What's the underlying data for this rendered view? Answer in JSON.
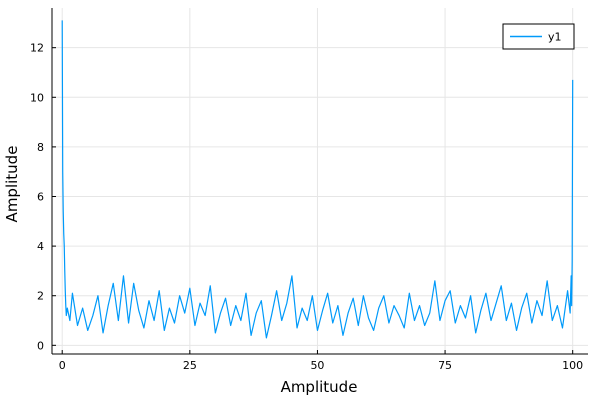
{
  "chart_data": {
    "type": "line",
    "title": "",
    "xlabel": "Amplitude",
    "ylabel": "Amplitude",
    "xlim": [
      -2,
      103
    ],
    "ylim": [
      -0.35,
      13.6
    ],
    "xticks": [
      0,
      25,
      50,
      75,
      100
    ],
    "yticks": [
      0,
      2,
      4,
      6,
      8,
      10,
      12
    ],
    "grid": true,
    "legend_position": "top-right",
    "series": [
      {
        "name": "y1",
        "color": "#009AFA",
        "x": [
          0,
          0.1,
          0.2,
          0.3,
          0.4,
          0.5,
          0.6,
          0.7,
          0.8,
          1,
          1.5,
          2,
          3,
          4,
          5,
          6,
          7,
          8,
          9,
          10,
          11,
          12,
          13,
          14,
          15,
          16,
          17,
          18,
          19,
          20,
          21,
          22,
          23,
          24,
          25,
          26,
          27,
          28,
          29,
          30,
          31,
          32,
          33,
          34,
          35,
          36,
          37,
          38,
          39,
          40,
          41,
          42,
          43,
          44,
          45,
          46,
          47,
          48,
          49,
          50,
          51,
          52,
          53,
          54,
          55,
          56,
          57,
          58,
          59,
          60,
          61,
          62,
          63,
          64,
          65,
          66,
          67,
          68,
          69,
          70,
          71,
          72,
          73,
          74,
          75,
          76,
          77,
          78,
          79,
          80,
          81,
          82,
          83,
          84,
          85,
          86,
          87,
          88,
          89,
          90,
          91,
          92,
          93,
          94,
          95,
          96,
          97,
          98,
          99,
          99.5,
          99.7,
          99.8,
          99.9,
          100
        ],
        "y": [
          13.1,
          7.0,
          5.4,
          4.5,
          4.0,
          3.0,
          2.2,
          1.6,
          1.2,
          1.5,
          1.0,
          2.1,
          0.8,
          1.5,
          0.6,
          1.2,
          2.0,
          0.5,
          1.6,
          2.5,
          1.0,
          2.8,
          0.9,
          2.5,
          1.4,
          0.7,
          1.8,
          1.0,
          2.2,
          0.6,
          1.5,
          0.9,
          2.0,
          1.3,
          2.3,
          0.8,
          1.7,
          1.2,
          2.4,
          0.5,
          1.3,
          1.9,
          0.8,
          1.6,
          1.0,
          2.1,
          0.4,
          1.3,
          1.8,
          0.3,
          1.2,
          2.2,
          1.0,
          1.7,
          2.8,
          0.7,
          1.5,
          1.0,
          2.0,
          0.6,
          1.4,
          2.1,
          0.9,
          1.6,
          0.4,
          1.3,
          1.9,
          0.8,
          2.0,
          1.1,
          0.6,
          1.5,
          2.0,
          0.9,
          1.6,
          1.2,
          0.7,
          2.1,
          1.0,
          1.6,
          0.8,
          1.3,
          2.6,
          1.0,
          1.8,
          2.2,
          0.9,
          1.6,
          1.1,
          2.0,
          0.5,
          1.4,
          2.1,
          1.0,
          1.7,
          2.4,
          1.0,
          1.7,
          0.6,
          1.5,
          2.1,
          0.9,
          1.8,
          1.2,
          2.6,
          1.0,
          1.6,
          0.7,
          2.2,
          1.3,
          2.8,
          1.6,
          3.4,
          10.7
        ]
      }
    ]
  }
}
